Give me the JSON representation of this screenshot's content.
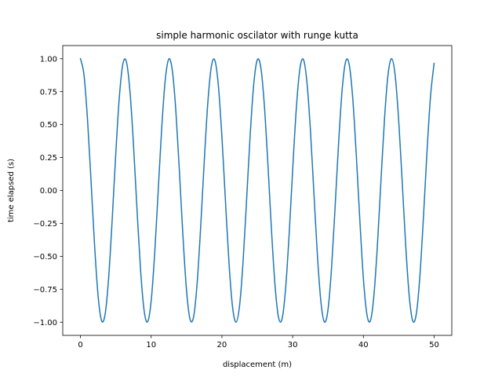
{
  "chart_data": {
    "type": "line",
    "title": "simple harmonic oscilator with runge kutta",
    "xlabel": "displacement (m)",
    "ylabel": "time elapsed (s)",
    "xlim": [
      -2.5,
      52.5
    ],
    "ylim": [
      -1.1,
      1.1
    ],
    "xticks": [
      0,
      10,
      20,
      30,
      40,
      50
    ],
    "yticks": [
      -1.0,
      -0.75,
      -0.5,
      -0.25,
      0.0,
      0.25,
      0.5,
      0.75,
      1.0
    ],
    "xtick_labels": [
      "0",
      "10",
      "20",
      "30",
      "40",
      "50"
    ],
    "ytick_labels": [
      "−1.00",
      "−0.75",
      "−0.50",
      "−0.25",
      "0.00",
      "0.25",
      "0.50",
      "0.75",
      "1.00"
    ],
    "grid": false,
    "series": [
      {
        "color": "#1f77b4",
        "x": [
          0,
          0.5,
          1,
          1.5,
          2,
          2.5,
          3,
          3.5,
          4,
          4.5,
          5,
          5.5,
          6,
          6.5,
          7,
          7.5,
          8,
          8.5,
          9,
          9.5,
          10,
          10.5,
          11,
          11.5,
          12,
          12.5,
          13,
          13.5,
          14,
          14.5,
          15,
          15.5,
          16,
          16.5,
          17,
          17.5,
          18,
          18.5,
          19,
          19.5,
          20,
          20.5,
          21,
          21.5,
          22,
          22.5,
          23,
          23.5,
          24,
          24.5,
          25,
          25.5,
          26,
          26.5,
          27,
          27.5,
          28,
          28.5,
          29,
          29.5,
          30,
          30.5,
          31,
          31.5,
          32,
          32.5,
          33,
          33.5,
          34,
          34.5,
          35,
          35.5,
          36,
          36.5,
          37,
          37.5,
          38,
          38.5,
          39,
          39.5,
          40,
          40.5,
          41,
          41.5,
          42,
          42.5,
          43,
          43.5,
          44,
          44.5,
          45,
          45.5,
          46,
          46.5,
          47,
          47.5,
          48,
          48.5,
          49,
          49.5,
          50
        ],
        "y": [
          1.0,
          0.878,
          0.54,
          0.071,
          -0.416,
          -0.801,
          -0.99,
          -0.936,
          -0.654,
          -0.211,
          0.284,
          0.709,
          0.96,
          0.977,
          0.754,
          0.347,
          -0.146,
          -0.602,
          -0.911,
          -0.997,
          -0.839,
          -0.476,
          0.004,
          0.483,
          0.844,
          0.998,
          0.907,
          0.595,
          0.137,
          -0.354,
          -0.76,
          -0.978,
          -0.958,
          -0.703,
          -0.275,
          0.217,
          0.66,
          0.938,
          0.989,
          0.796,
          0.408,
          -0.079,
          -0.548,
          -0.882,
          -1.0,
          -0.874,
          -0.533,
          -0.062,
          0.424,
          0.806,
          0.991,
          0.934,
          0.647,
          0.202,
          -0.292,
          -0.714,
          -0.962,
          -0.976,
          -0.748,
          -0.339,
          0.154,
          0.608,
          0.914,
          0.996,
          0.834,
          0.469,
          -0.013,
          -0.491,
          -0.848,
          -0.999,
          -0.904,
          -0.588,
          -0.128,
          0.362,
          0.765,
          0.98,
          0.955,
          0.697,
          0.267,
          -0.225,
          -0.667,
          -0.941,
          -0.988,
          -0.791,
          -0.4,
          0.088,
          0.555,
          0.886,
          1.0,
          0.87,
          0.525,
          0.054,
          -0.432,
          -0.811,
          -0.993,
          -0.931,
          -0.641,
          -0.194,
          0.3,
          0.72,
          0.965
        ]
      }
    ]
  }
}
